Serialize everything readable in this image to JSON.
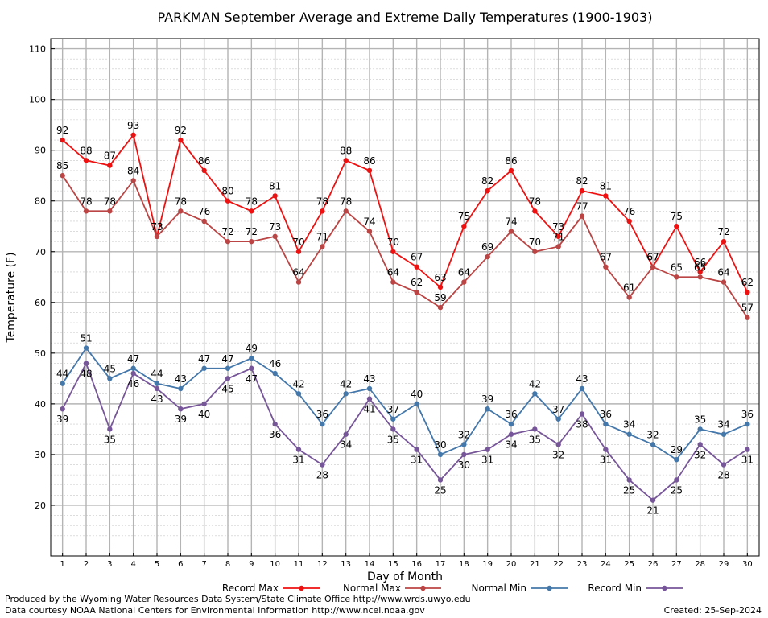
{
  "chart_data": {
    "type": "line",
    "title": "PARKMAN September Average and Extreme Daily Temperatures (1900-1903)",
    "xlabel": "Day of Month",
    "ylabel": "Temperature (F)",
    "x": [
      1,
      2,
      3,
      4,
      5,
      6,
      7,
      8,
      9,
      10,
      11,
      12,
      13,
      14,
      15,
      16,
      17,
      18,
      19,
      20,
      21,
      22,
      23,
      24,
      25,
      26,
      27,
      28,
      29,
      30
    ],
    "ylim": [
      10,
      112
    ],
    "yticks": [
      20,
      30,
      40,
      50,
      60,
      70,
      80,
      90,
      100,
      110
    ],
    "grid": true,
    "legend_position": "bottom",
    "series": [
      {
        "name": "Record Max",
        "color": "#ee1111",
        "values": [
          92,
          88,
          87,
          93,
          73,
          92,
          86,
          80,
          78,
          81,
          70,
          78,
          88,
          86,
          70,
          67,
          63,
          75,
          82,
          86,
          78,
          73,
          82,
          81,
          76,
          67,
          75,
          66,
          72,
          62
        ]
      },
      {
        "name": "Normal Max",
        "color": "#bb4444",
        "values": [
          85,
          78,
          78,
          84,
          73,
          78,
          76,
          72,
          72,
          73,
          64,
          71,
          78,
          74,
          64,
          62,
          59,
          64,
          69,
          74,
          70,
          71,
          77,
          67,
          61,
          67,
          65,
          65,
          64,
          57
        ]
      },
      {
        "name": "Normal Min",
        "color": "#4477aa",
        "values": [
          44,
          51,
          45,
          47,
          44,
          43,
          47,
          47,
          49,
          46,
          42,
          36,
          42,
          43,
          37,
          40,
          30,
          32,
          39,
          36,
          42,
          37,
          43,
          36,
          34,
          32,
          29,
          35,
          34,
          36
        ]
      },
      {
        "name": "Record Min",
        "color": "#775599",
        "values": [
          39,
          48,
          35,
          46,
          43,
          39,
          40,
          45,
          47,
          36,
          31,
          28,
          34,
          41,
          35,
          31,
          25,
          30,
          31,
          34,
          35,
          32,
          38,
          31,
          25,
          21,
          25,
          32,
          28,
          31
        ]
      }
    ]
  },
  "credits": {
    "produced_by": "Produced by the Wyoming Water Resources Data System/State Climate Office http://www.wrds.uwyo.edu",
    "courtesy": "Data courtesy NOAA National Centers for Environmental Information http://www.ncei.noaa.gov",
    "created": "Created:  25-Sep-2024"
  }
}
